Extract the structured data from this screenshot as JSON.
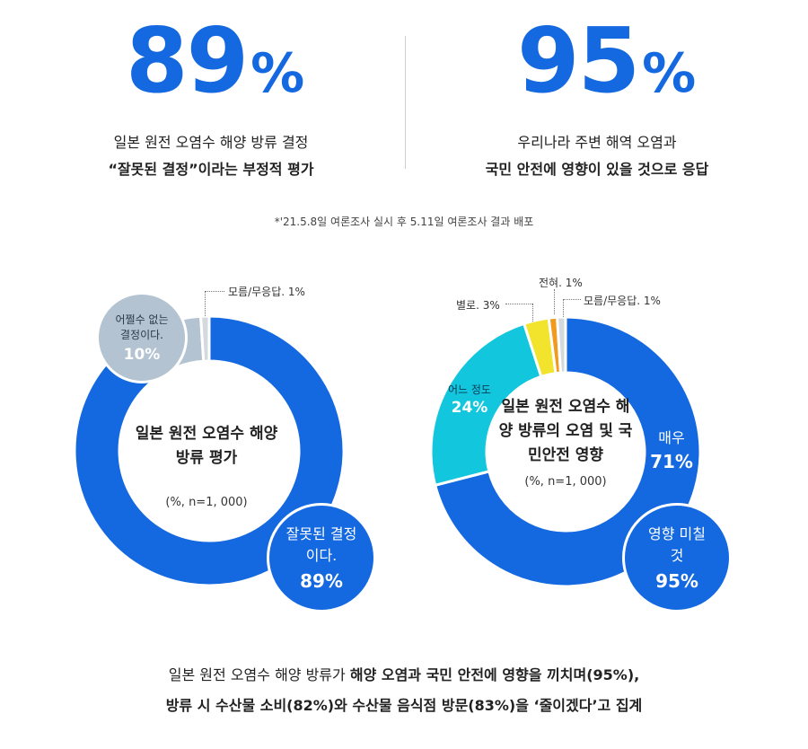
{
  "stats": {
    "left": {
      "number": "89",
      "percent": "%",
      "line1": "일본 원전 오염수 해양 방류 결정",
      "line2": "“잘못된 결정”이라는 부정적 평가"
    },
    "right": {
      "number": "95",
      "percent": "%",
      "line1": "우리나라 주변 해역 오염과",
      "line2": "국민 안전에 영향이 있을 것으로 응답"
    }
  },
  "note": "*'21.5.8일 여론조사 실시 후 5.11일 여론조사 결과 배포",
  "footer": {
    "line1_normal": "일본 원전 오염수 해양 방류가 ",
    "line1_bold": "해양 오염과 국민 안전에 영향을 끼치며(95%),",
    "line2": "방류 시 수산물 소비(82%)와 수산물 음식점 방문(83%)을 ‘줄이겠다’고 집계"
  },
  "colors": {
    "blue": "#1469e1",
    "gray_blue": "#b3c3d1",
    "light_gray": "#d4d9de",
    "cyan": "#12c6de",
    "yellow": "#f2e42d",
    "orange": "#f29a1e"
  },
  "chart_data": [
    {
      "type": "pie",
      "title": "일본 원전 오염수 해양 방류 평가",
      "subtitle": "(%, n=1, 000)",
      "slices": [
        {
          "label": "잘못된 결정이다.",
          "value": 89,
          "value_label": "89%",
          "color": "#1469e1"
        },
        {
          "label": "어쩔수 없는 결정이다.",
          "value": 10,
          "value_label": "10%",
          "color": "#b3c3d1"
        },
        {
          "label": "모름/무응답. 1%",
          "value": 1,
          "value_label": "1%",
          "color": "#d4d9de"
        }
      ]
    },
    {
      "type": "pie",
      "title": "일본 원전 오염수 해양 방류의 오염 및 국민안전 영향",
      "subtitle": "(%, n=1, 000)",
      "slices": [
        {
          "label": "매우",
          "value": 71,
          "value_label": "71%",
          "color": "#1469e1"
        },
        {
          "label": "어느 정도",
          "value": 24,
          "value_label": "24%",
          "color": "#12c6de"
        },
        {
          "label": "별로. 3%",
          "value": 3,
          "value_label": "3%",
          "color": "#f2e42d"
        },
        {
          "label": "전혀. 1%",
          "value": 1,
          "value_label": "1%",
          "color": "#f29a1e"
        },
        {
          "label": "모름/무응답. 1%",
          "value": 1,
          "value_label": "1%",
          "color": "#d4d9de"
        }
      ],
      "summary": {
        "label": "영향 미칠 것",
        "value": 95,
        "value_label": "95%"
      }
    }
  ]
}
